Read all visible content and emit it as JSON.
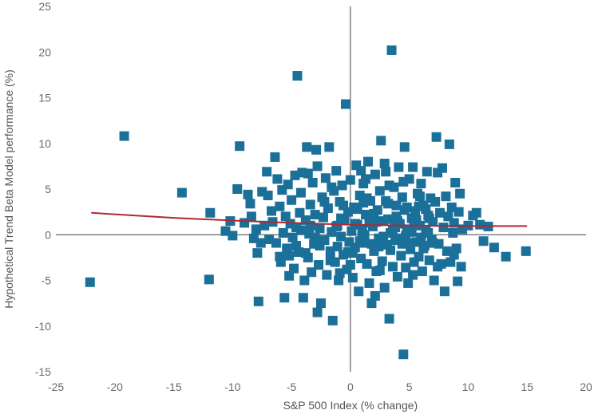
{
  "chart_data": {
    "type": "scatter",
    "title": "",
    "xlabel": "S&P 500 Index (% change)",
    "ylabel": "Hypothetical Trend Beta Model performance (%)",
    "xlim": [
      -25,
      20
    ],
    "ylim": [
      -15,
      25
    ],
    "x_ticks": [
      "-25",
      "-20",
      "-15",
      "-10",
      "-5",
      "0",
      "5",
      "10",
      "15",
      "20"
    ],
    "y_ticks": [
      "-15",
      "-10",
      "-5",
      "0",
      "5",
      "10",
      "15",
      "20",
      "25"
    ],
    "grid": false,
    "legend": "none",
    "marker": "square",
    "marker_color": "#1a7099",
    "trend_color": "#b0282e",
    "series": [
      {
        "kind": "scatter",
        "points": [
          [
            -22.1,
            -5.2
          ],
          [
            -19.2,
            10.8
          ],
          [
            -14.3,
            4.6
          ],
          [
            -12.0,
            -4.9
          ],
          [
            -11.9,
            2.4
          ],
          [
            -10.6,
            0.4
          ],
          [
            -10.2,
            1.5
          ],
          [
            -10.0,
            -0.1
          ],
          [
            -9.6,
            5.0
          ],
          [
            -9.4,
            9.7
          ],
          [
            -9.0,
            1.3
          ],
          [
            -8.7,
            4.4
          ],
          [
            -8.5,
            3.4
          ],
          [
            -8.4,
            2.0
          ],
          [
            -8.2,
            -0.4
          ],
          [
            -8.0,
            0.6
          ],
          [
            -7.9,
            -2.0
          ],
          [
            -7.8,
            -7.3
          ],
          [
            -7.5,
            4.7
          ],
          [
            -7.3,
            1.0
          ],
          [
            -7.1,
            6.9
          ],
          [
            -7.0,
            4.3
          ],
          [
            -6.9,
            -0.5
          ],
          [
            -6.7,
            2.6
          ],
          [
            -6.6,
            1.4
          ],
          [
            -6.4,
            8.5
          ],
          [
            -6.3,
            -0.9
          ],
          [
            -6.2,
            6.1
          ],
          [
            -6.0,
            3.1
          ],
          [
            -5.9,
            -3.0
          ],
          [
            -5.8,
            4.9
          ],
          [
            -5.7,
            0.2
          ],
          [
            -5.6,
            -6.9
          ],
          [
            -5.5,
            2.0
          ],
          [
            -5.4,
            -1.5
          ],
          [
            -5.3,
            5.5
          ],
          [
            -5.2,
            -2.3
          ],
          [
            -5.1,
            1.2
          ],
          [
            -5.0,
            3.8
          ],
          [
            -4.9,
            -0.3
          ],
          [
            -4.8,
            -3.7
          ],
          [
            -4.7,
            6.5
          ],
          [
            -4.6,
            0.8
          ],
          [
            -4.5,
            17.4
          ],
          [
            -4.4,
            -1.9
          ],
          [
            -4.3,
            2.4
          ],
          [
            -4.2,
            4.6
          ],
          [
            -4.1,
            6.8
          ],
          [
            -4.0,
            -6.9
          ],
          [
            -3.9,
            -5.0
          ],
          [
            -3.8,
            1.6
          ],
          [
            -3.7,
            9.6
          ],
          [
            -3.6,
            -2.5
          ],
          [
            -3.5,
            0.1
          ],
          [
            -3.4,
            3.3
          ],
          [
            -3.3,
            -4.1
          ],
          [
            -3.2,
            5.7
          ],
          [
            -3.1,
            -1.0
          ],
          [
            -3.0,
            2.2
          ],
          [
            -2.9,
            9.3
          ],
          [
            -2.8,
            -8.5
          ],
          [
            -2.7,
            -3.3
          ],
          [
            -2.6,
            0.7
          ],
          [
            -2.5,
            -7.5
          ],
          [
            -2.4,
            4.1
          ],
          [
            -2.3,
            1.9
          ],
          [
            -2.2,
            -0.6
          ],
          [
            -2.1,
            6.2
          ],
          [
            -2.0,
            -4.4
          ],
          [
            -1.9,
            2.9
          ],
          [
            -1.8,
            9.6
          ],
          [
            -1.7,
            -1.8
          ],
          [
            -1.6,
            0.3
          ],
          [
            -1.5,
            -9.4
          ],
          [
            -1.4,
            4.8
          ],
          [
            -1.3,
            -3.0
          ],
          [
            -1.2,
            7.0
          ],
          [
            -1.1,
            1.0
          ],
          [
            -1.0,
            -5.0
          ],
          [
            -0.9,
            3.6
          ],
          [
            -0.8,
            -0.2
          ],
          [
            -0.7,
            5.4
          ],
          [
            -0.6,
            -2.2
          ],
          [
            -0.5,
            1.7
          ],
          [
            -0.4,
            14.3
          ],
          [
            -0.3,
            -3.8
          ],
          [
            -0.2,
            2.5
          ],
          [
            -0.1,
            -0.8
          ],
          [
            0.0,
            6.0
          ],
          [
            0.1,
            0.4
          ],
          [
            0.2,
            -4.7
          ],
          [
            0.3,
            3.0
          ],
          [
            0.4,
            -1.4
          ],
          [
            0.5,
            7.6
          ],
          [
            0.6,
            1.1
          ],
          [
            0.7,
            -6.2
          ],
          [
            0.8,
            4.3
          ],
          [
            0.9,
            -2.6
          ],
          [
            1.0,
            0.6
          ],
          [
            1.1,
            5.6
          ],
          [
            1.2,
            -0.9
          ],
          [
            1.3,
            2.2
          ],
          [
            1.4,
            -3.2
          ],
          [
            1.5,
            8.0
          ],
          [
            1.6,
            -5.3
          ],
          [
            1.7,
            3.7
          ],
          [
            1.8,
            -7.5
          ],
          [
            1.9,
            0.9
          ],
          [
            2.0,
            -1.8
          ],
          [
            2.1,
            6.6
          ],
          [
            2.2,
            -4.0
          ],
          [
            2.3,
            2.7
          ],
          [
            2.4,
            -0.4
          ],
          [
            2.5,
            4.8
          ],
          [
            2.6,
            10.3
          ],
          [
            2.7,
            -2.9
          ],
          [
            2.8,
            1.5
          ],
          [
            2.9,
            -5.8
          ],
          [
            3.0,
            6.9
          ],
          [
            3.1,
            -1.1
          ],
          [
            3.2,
            3.4
          ],
          [
            3.3,
            -9.2
          ],
          [
            3.4,
            0.2
          ],
          [
            3.5,
            20.2
          ],
          [
            3.6,
            -3.5
          ],
          [
            3.7,
            5.2
          ],
          [
            3.8,
            -0.6
          ],
          [
            3.9,
            2.0
          ],
          [
            4.0,
            -4.6
          ],
          [
            4.1,
            7.4
          ],
          [
            4.2,
            1.2
          ],
          [
            4.3,
            -2.3
          ],
          [
            4.4,
            4.1
          ],
          [
            4.5,
            -13.1
          ],
          [
            4.6,
            9.6
          ],
          [
            4.7,
            -0.1
          ],
          [
            4.8,
            3.0
          ],
          [
            4.9,
            -5.3
          ],
          [
            5.0,
            6.1
          ],
          [
            5.1,
            -1.6
          ],
          [
            5.2,
            1.8
          ],
          [
            5.3,
            7.4
          ],
          [
            5.4,
            -3.0
          ],
          [
            5.5,
            2.6
          ],
          [
            5.6,
            -0.8
          ],
          [
            5.7,
            4.5
          ],
          [
            5.8,
            -2.4
          ],
          [
            5.9,
            1.0
          ],
          [
            6.0,
            5.6
          ],
          [
            6.1,
            -4.0
          ],
          [
            6.2,
            3.2
          ],
          [
            6.3,
            -1.2
          ],
          [
            6.4,
            0.4
          ],
          [
            6.5,
            6.9
          ],
          [
            6.6,
            2.1
          ],
          [
            6.7,
            -2.8
          ],
          [
            6.8,
            4.0
          ],
          [
            6.9,
            -0.5
          ],
          [
            7.0,
            1.4
          ],
          [
            7.1,
            -5.0
          ],
          [
            7.2,
            3.6
          ],
          [
            7.3,
            10.7
          ],
          [
            7.4,
            6.8
          ],
          [
            7.5,
            -1.0
          ],
          [
            7.6,
            2.4
          ],
          [
            7.7,
            -3.2
          ],
          [
            7.8,
            7.3
          ],
          [
            7.9,
            0.8
          ],
          [
            8.0,
            -6.2
          ],
          [
            8.1,
            4.2
          ],
          [
            8.2,
            -1.8
          ],
          [
            8.3,
            2.0
          ],
          [
            8.4,
            9.9
          ],
          [
            8.5,
            -3.0
          ],
          [
            8.6,
            3.0
          ],
          [
            8.7,
            0.2
          ],
          [
            8.8,
            1.3
          ],
          [
            8.9,
            5.7
          ],
          [
            9.0,
            -1.5
          ],
          [
            9.1,
            -5.1
          ],
          [
            9.2,
            2.5
          ],
          [
            9.3,
            4.5
          ],
          [
            9.4,
            -3.5
          ],
          [
            9.5,
            0.6
          ],
          [
            10.0,
            1.0
          ],
          [
            10.4,
            2.1
          ],
          [
            10.7,
            2.4
          ],
          [
            11.0,
            1.1
          ],
          [
            11.3,
            -0.7
          ],
          [
            11.7,
            0.9
          ],
          [
            12.2,
            -1.4
          ],
          [
            13.2,
            -2.4
          ],
          [
            14.9,
            -1.8
          ],
          [
            -1.6,
            5.2
          ],
          [
            -1.1,
            -1.3
          ],
          [
            -0.6,
            3.2
          ],
          [
            0.2,
            -2.0
          ],
          [
            0.6,
            2.8
          ],
          [
            1.0,
            -0.2
          ],
          [
            1.4,
            4.0
          ],
          [
            1.8,
            -1.0
          ],
          [
            2.2,
            1.4
          ],
          [
            2.6,
            -0.5
          ],
          [
            3.0,
            3.7
          ],
          [
            3.4,
            -1.7
          ],
          [
            3.8,
            0.8
          ],
          [
            4.2,
            -0.4
          ],
          [
            4.6,
            2.7
          ],
          [
            5.0,
            -0.9
          ],
          [
            5.4,
            1.1
          ],
          [
            5.8,
            3.1
          ],
          [
            6.2,
            -1.5
          ],
          [
            6.6,
            0.2
          ],
          [
            7.0,
            -0.9
          ],
          [
            7.4,
            -3.5
          ],
          [
            -2.6,
            -1.2
          ],
          [
            -3.0,
            -0.3
          ],
          [
            -3.4,
            1.0
          ],
          [
            -3.8,
            -2.0
          ],
          [
            -4.2,
            0.5
          ],
          [
            -4.6,
            -1.2
          ],
          [
            -1.2,
            0.9
          ],
          [
            -0.8,
            1.8
          ],
          [
            -0.2,
            -1.9
          ],
          [
            0.4,
            1.2
          ],
          [
            0.8,
            -0.7
          ],
          [
            1.2,
            0.0
          ],
          [
            1.6,
            1.3
          ],
          [
            2.0,
            2.3
          ],
          [
            2.4,
            -1.3
          ],
          [
            2.8,
            -0.2
          ],
          [
            3.2,
            1.7
          ],
          [
            3.6,
            0.5
          ],
          [
            4.0,
            1.5
          ],
          [
            4.4,
            -1.0
          ],
          [
            4.8,
            0.6
          ],
          [
            5.2,
            0.3
          ],
          [
            5.6,
            1.6
          ],
          [
            6.0,
            -0.3
          ],
          [
            6.4,
            2.8
          ],
          [
            0.0,
            -3.3
          ],
          [
            1.1,
            3.5
          ],
          [
            2.5,
            -3.9
          ],
          [
            3.9,
            3.2
          ],
          [
            5.3,
            -4.4
          ],
          [
            6.7,
            1.8
          ],
          [
            -2.2,
            3.6
          ],
          [
            -1.7,
            -2.8
          ],
          [
            1.3,
            6.1
          ],
          [
            3.3,
            5.4
          ],
          [
            4.7,
            -3.6
          ],
          [
            -0.9,
            -4.2
          ],
          [
            2.1,
            -6.7
          ],
          [
            8.8,
            -2.2
          ],
          [
            -6.0,
            -2.4
          ],
          [
            -5.2,
            -4.5
          ],
          [
            -7.6,
            -0.9
          ],
          [
            -2.8,
            7.5
          ],
          [
            0.9,
            7.0
          ],
          [
            2.9,
            7.8
          ],
          [
            4.5,
            5.8
          ],
          [
            -3.6,
            6.7
          ],
          [
            5.9,
            4.2
          ]
        ]
      },
      {
        "kind": "trend",
        "points": [
          [
            -22,
            2.4
          ],
          [
            -15,
            1.85
          ],
          [
            -10,
            1.55
          ],
          [
            -5,
            1.3
          ],
          [
            0,
            1.1
          ],
          [
            5,
            1.0
          ],
          [
            10,
            0.95
          ],
          [
            15,
            0.95
          ]
        ]
      }
    ]
  }
}
